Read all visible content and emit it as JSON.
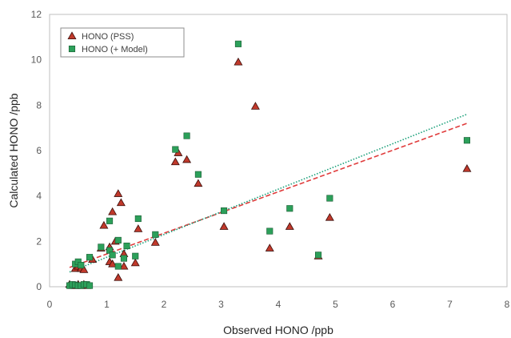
{
  "chart_data": {
    "type": "scatter",
    "title": "",
    "xlabel": "Observed HONO /ppb",
    "ylabel": "Calculated HONO /ppb",
    "xlim": [
      0,
      8
    ],
    "ylim": [
      0,
      12
    ],
    "x_ticks": [
      0,
      1,
      2,
      3,
      4,
      5,
      6,
      7,
      8
    ],
    "y_ticks": [
      0,
      2,
      4,
      6,
      8,
      10,
      12
    ],
    "grid": false,
    "legend_position": "top-left",
    "series": [
      {
        "name": "HONO (PSS)",
        "marker": "triangle",
        "color": "#c0392b",
        "points": [
          [
            0.35,
            0.1
          ],
          [
            0.4,
            0.05
          ],
          [
            0.45,
            0.05
          ],
          [
            0.5,
            0.1
          ],
          [
            0.55,
            0.05
          ],
          [
            0.6,
            0.1
          ],
          [
            0.65,
            0.05
          ],
          [
            0.45,
            0.8
          ],
          [
            0.5,
            0.9
          ],
          [
            0.55,
            0.8
          ],
          [
            0.6,
            0.75
          ],
          [
            0.75,
            1.2
          ],
          [
            0.9,
            1.7
          ],
          [
            0.95,
            2.7
          ],
          [
            1.05,
            1.75
          ],
          [
            1.05,
            1.1
          ],
          [
            1.1,
            1.0
          ],
          [
            1.1,
            3.3
          ],
          [
            1.15,
            2.0
          ],
          [
            1.2,
            4.1
          ],
          [
            1.2,
            0.4
          ],
          [
            1.25,
            3.7
          ],
          [
            1.3,
            0.9
          ],
          [
            1.3,
            1.45
          ],
          [
            1.5,
            1.05
          ],
          [
            1.55,
            2.55
          ],
          [
            1.85,
            1.95
          ],
          [
            2.2,
            5.5
          ],
          [
            2.25,
            5.9
          ],
          [
            2.4,
            5.6
          ],
          [
            2.6,
            4.55
          ],
          [
            3.05,
            2.65
          ],
          [
            3.3,
            9.9
          ],
          [
            3.6,
            7.95
          ],
          [
            3.85,
            1.7
          ],
          [
            4.2,
            2.65
          ],
          [
            4.7,
            1.35
          ],
          [
            4.9,
            3.05
          ],
          [
            7.3,
            5.2
          ]
        ]
      },
      {
        "name": "HONO (+ Model)",
        "marker": "square",
        "color": "#2ca05a",
        "points": [
          [
            0.35,
            0.05
          ],
          [
            0.4,
            0.1
          ],
          [
            0.45,
            0.08
          ],
          [
            0.5,
            0.05
          ],
          [
            0.55,
            0.05
          ],
          [
            0.6,
            0.1
          ],
          [
            0.65,
            0.1
          ],
          [
            0.7,
            0.05
          ],
          [
            0.45,
            1.0
          ],
          [
            0.5,
            1.1
          ],
          [
            0.55,
            0.95
          ],
          [
            0.7,
            1.3
          ],
          [
            0.9,
            1.75
          ],
          [
            1.05,
            1.6
          ],
          [
            1.05,
            2.9
          ],
          [
            1.1,
            1.4
          ],
          [
            1.2,
            2.05
          ],
          [
            1.2,
            0.9
          ],
          [
            1.3,
            1.25
          ],
          [
            1.35,
            1.8
          ],
          [
            1.5,
            1.35
          ],
          [
            1.55,
            3.0
          ],
          [
            1.85,
            2.3
          ],
          [
            2.2,
            6.05
          ],
          [
            2.4,
            6.65
          ],
          [
            2.6,
            4.95
          ],
          [
            3.05,
            3.35
          ],
          [
            3.3,
            10.7
          ],
          [
            3.85,
            2.45
          ],
          [
            4.2,
            3.45
          ],
          [
            4.7,
            1.4
          ],
          [
            4.9,
            3.9
          ],
          [
            7.3,
            6.45
          ]
        ]
      }
    ],
    "trendlines": [
      {
        "series": "HONO (PSS)",
        "style": "dashed",
        "color": "#e03c3c",
        "x": [
          0.35,
          7.3
        ],
        "y": [
          0.85,
          7.2
        ]
      },
      {
        "series": "HONO (+ Model)",
        "style": "dotted",
        "color": "#1aa07a",
        "x": [
          0.35,
          7.3
        ],
        "y": [
          0.65,
          7.6
        ]
      }
    ]
  }
}
